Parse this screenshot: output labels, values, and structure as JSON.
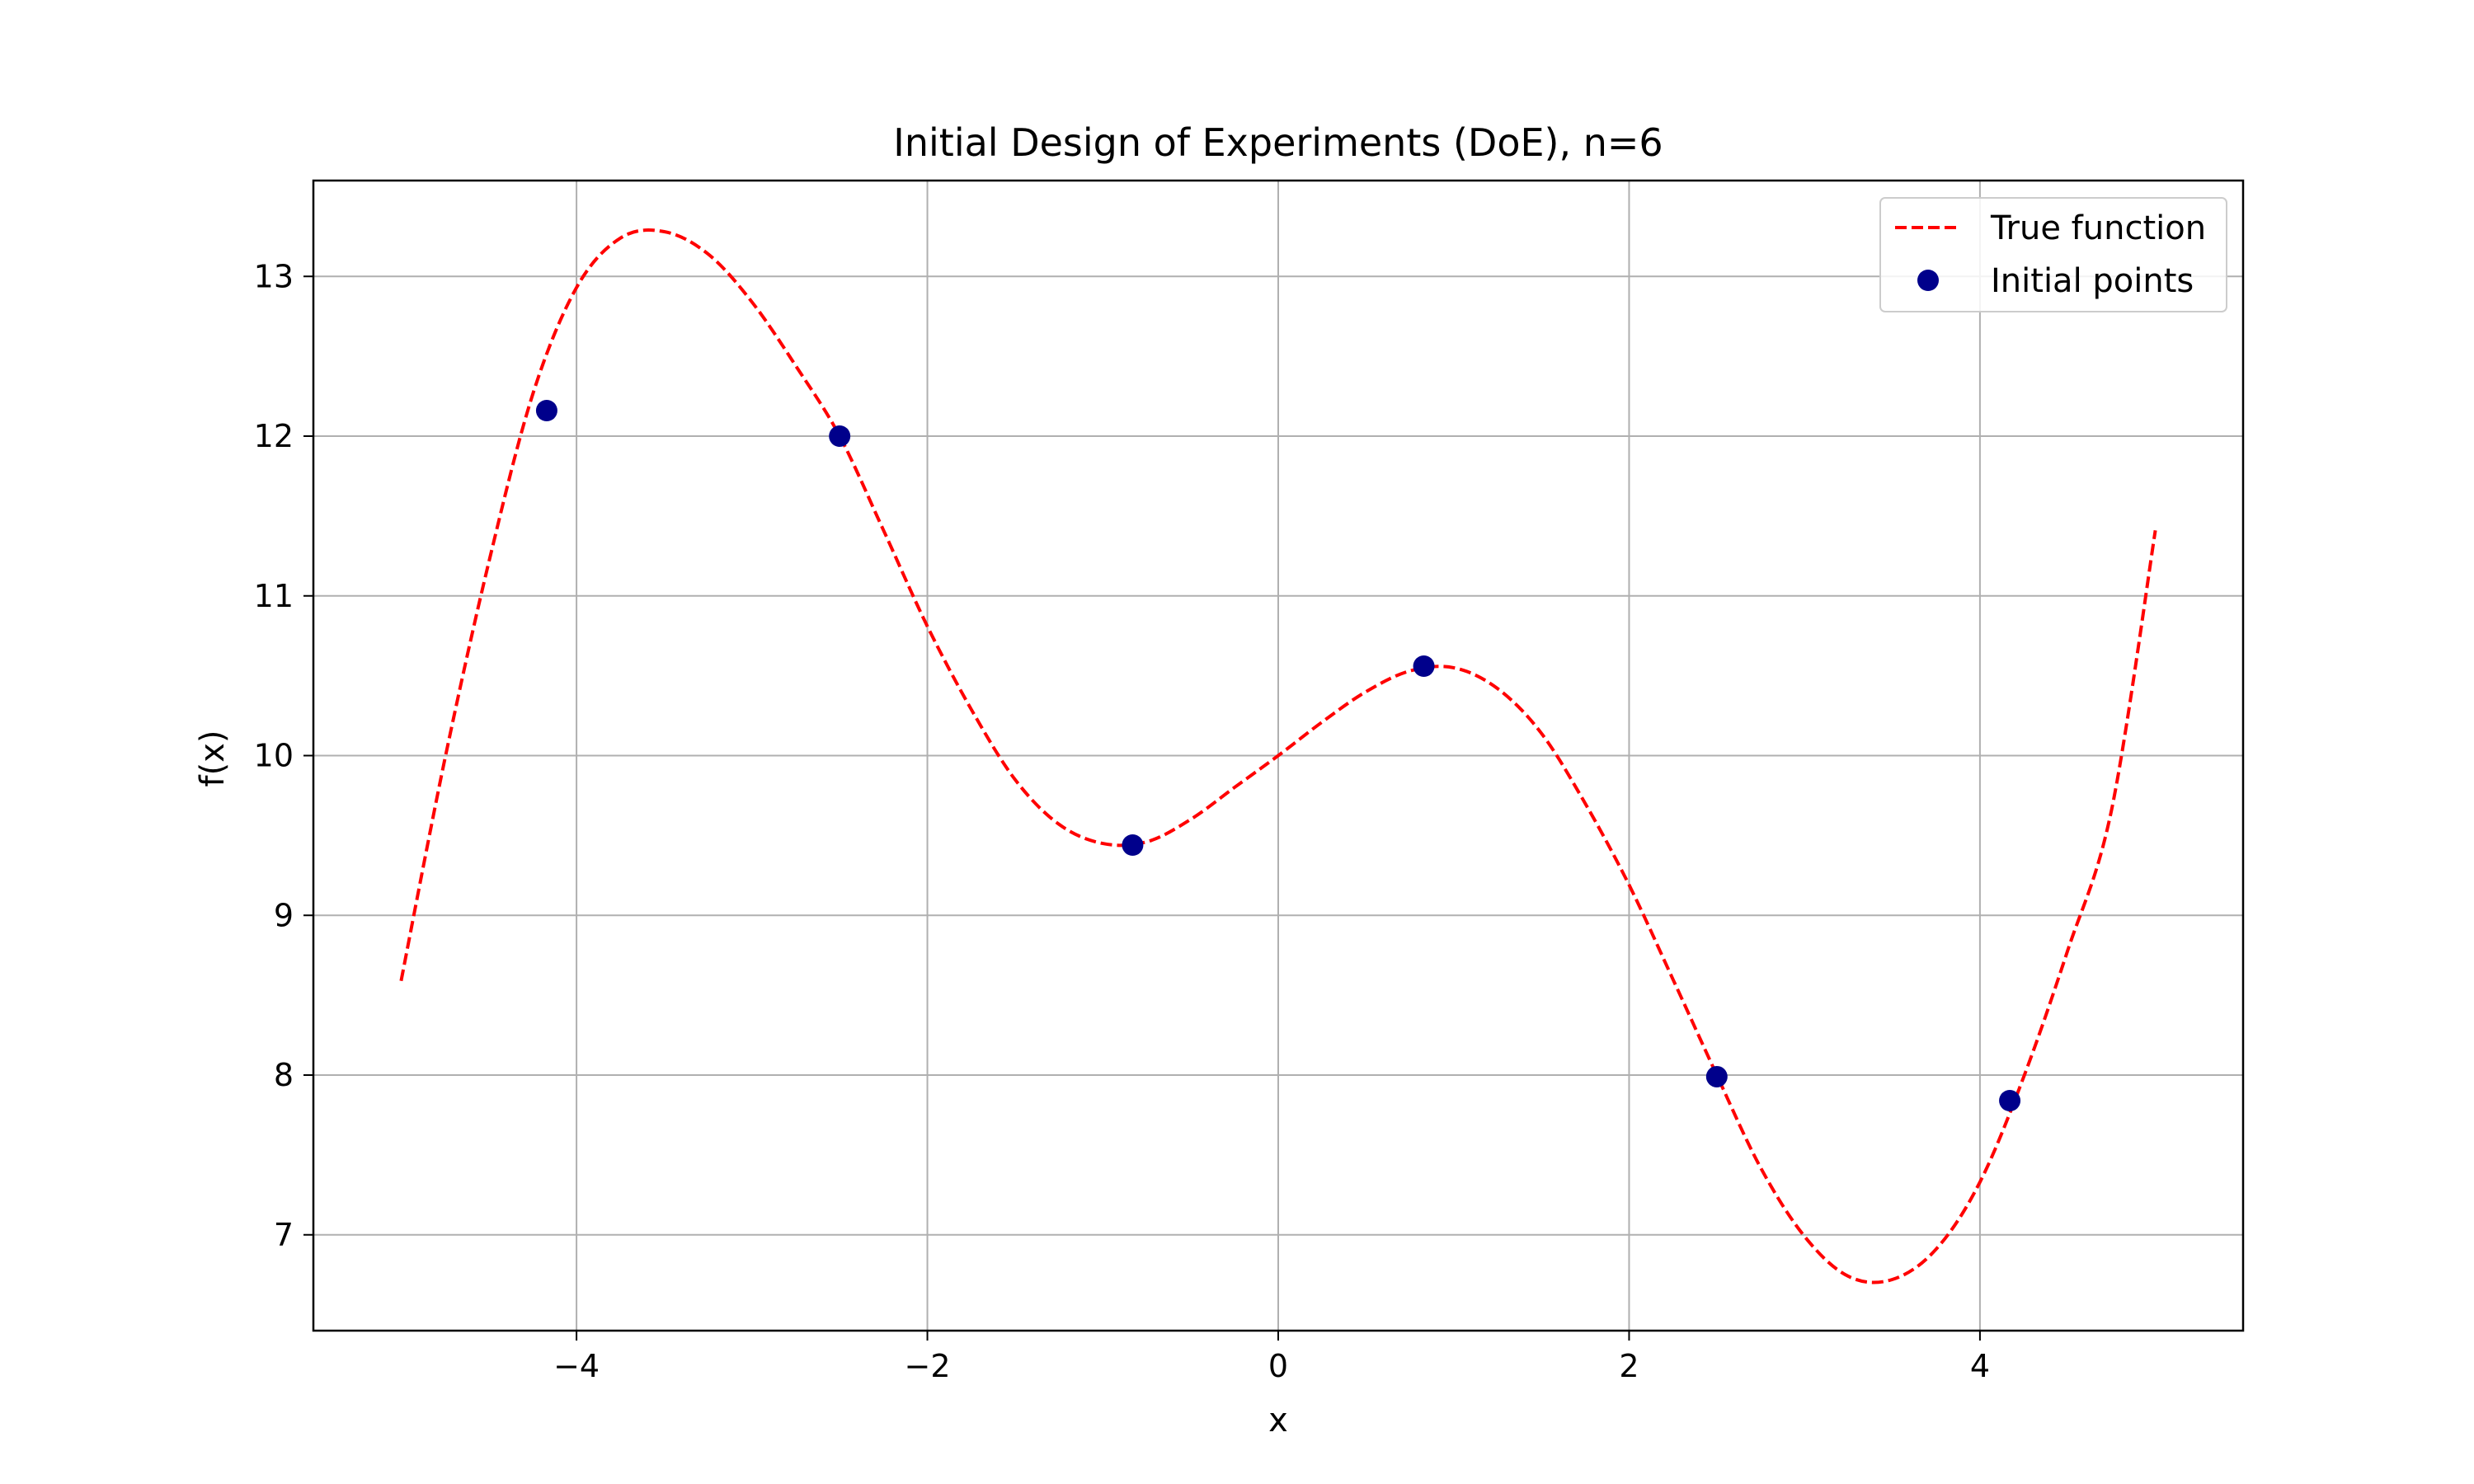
{
  "chart_data": {
    "type": "line",
    "title": "Initial Design of Experiments (DoE), n=6",
    "xlabel": "x",
    "ylabel": "f(x)",
    "xlim": [
      -5.5,
      5.5
    ],
    "ylim": [
      6.4,
      13.6
    ],
    "xticks": [
      -4,
      -2,
      0,
      2,
      4
    ],
    "xtick_labels": [
      "−4",
      "−2",
      "0",
      "2",
      "4"
    ],
    "yticks": [
      7,
      8,
      9,
      10,
      11,
      12,
      13
    ],
    "ytick_labels": [
      "7",
      "8",
      "9",
      "10",
      "11",
      "12",
      "13"
    ],
    "grid": true,
    "legend_position": "top-right",
    "series": [
      {
        "name": "True function",
        "kind": "line",
        "style": "dashed",
        "color": "#ff0000",
        "x": [
          -5.0,
          -4.75,
          -4.5,
          -4.25,
          -4.0,
          -3.75,
          -3.5,
          -3.25,
          -3.0,
          -2.75,
          -2.5,
          -2.25,
          -2.0,
          -1.75,
          -1.5,
          -1.25,
          -1.0,
          -0.75,
          -0.5,
          -0.25,
          0.0,
          0.25,
          0.5,
          0.75,
          1.0,
          1.25,
          1.5,
          1.75,
          2.0,
          2.25,
          2.5,
          2.75,
          3.0,
          3.25,
          3.5,
          3.75,
          4.0,
          4.25,
          4.5,
          4.75,
          5.0
        ],
        "y": [
          8.59,
          9.98,
          11.21,
          12.26,
          12.93,
          13.24,
          13.28,
          13.14,
          12.84,
          12.44,
          12.0,
          11.41,
          10.81,
          10.29,
          9.85,
          9.57,
          9.45,
          9.46,
          9.6,
          9.8,
          10.0,
          10.21,
          10.4,
          10.53,
          10.55,
          10.42,
          10.14,
          9.7,
          9.19,
          8.6,
          8.0,
          7.42,
          6.99,
          6.74,
          6.72,
          6.91,
          7.33,
          7.99,
          8.78,
          9.66,
          11.41
        ]
      },
      {
        "name": "Initial points",
        "kind": "scatter",
        "color": "#00008b",
        "x": [
          -4.17,
          -2.5,
          -0.83,
          0.83,
          2.5,
          4.17
        ],
        "y": [
          12.16,
          12.0,
          9.44,
          10.56,
          7.99,
          7.84
        ]
      }
    ]
  }
}
